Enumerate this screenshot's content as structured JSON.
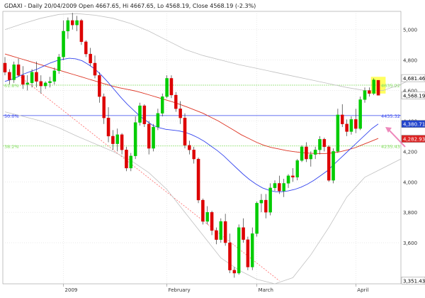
{
  "header": {
    "text": "GDAXI - Daily 20/04/2009 Open 4667.65, Hi 4667.65, Lo 4568.19, Close 4568.19 (-2.3%)"
  },
  "colors": {
    "up": "#00cc00",
    "down": "#dd0000",
    "ma_fast": "#3344ee",
    "ma_slow": "#dd3322",
    "envelope": "#c0c0c0",
    "fib_green": "#88dd66",
    "fib_blue": "#3344ee",
    "trendline": "#ff6666",
    "grid": "#dddddd",
    "highlight": "#ffff44",
    "arrow": "#ee88bb",
    "axis_text": "#333333"
  },
  "chart_data": {
    "type": "candlestick",
    "y_axis_position": "right",
    "ylim": [
      3330,
      5120
    ],
    "grid": true,
    "y_ticks": [
      3600,
      3800,
      4000,
      4200,
      4400,
      4600,
      4800,
      5000
    ],
    "y_tick_labels": [
      "3,600",
      "3,800",
      "4,000",
      "4,200",
      "4,400",
      "4,600",
      "4,800",
      "5,000"
    ],
    "x_labels": [
      {
        "label": "2009",
        "index": 13
      },
      {
        "label": "February",
        "index": 36
      },
      {
        "label": "March",
        "index": 56
      },
      {
        "label": "April",
        "index": 78
      }
    ],
    "ohlc": [
      [
        4780,
        4820,
        4700,
        4720
      ],
      [
        4720,
        4740,
        4640,
        4670
      ],
      [
        4670,
        4790,
        4650,
        4770
      ],
      [
        4770,
        4810,
        4690,
        4700
      ],
      [
        4700,
        4760,
        4610,
        4640
      ],
      [
        4640,
        4700,
        4600,
        4650
      ],
      [
        4650,
        4740,
        4620,
        4720
      ],
      [
        4720,
        4790,
        4620,
        4660
      ],
      [
        4660,
        4700,
        4580,
        4630
      ],
      [
        4630,
        4660,
        4610,
        4650
      ],
      [
        4650,
        4690,
        4620,
        4660
      ],
      [
        4660,
        4750,
        4640,
        4730
      ],
      [
        4730,
        4840,
        4710,
        4820
      ],
      [
        4820,
        5060,
        4800,
        4990
      ],
      [
        4990,
        5080,
        4940,
        5060
      ],
      [
        5060,
        5110,
        5000,
        5030
      ],
      [
        5030,
        5090,
        4990,
        5060
      ],
      [
        5060,
        5070,
        4900,
        4920
      ],
      [
        4920,
        4930,
        4820,
        4840
      ],
      [
        4840,
        4880,
        4760,
        4780
      ],
      [
        4780,
        4830,
        4680,
        4700
      ],
      [
        4700,
        4720,
        4520,
        4560
      ],
      [
        4560,
        4580,
        4380,
        4420
      ],
      [
        4420,
        4490,
        4260,
        4300
      ],
      [
        4300,
        4340,
        4210,
        4250
      ],
      [
        4250,
        4350,
        4200,
        4310
      ],
      [
        4310,
        4320,
        4180,
        4210
      ],
      [
        4210,
        4230,
        4070,
        4090
      ],
      [
        4090,
        4190,
        4070,
        4170
      ],
      [
        4170,
        4430,
        4150,
        4390
      ],
      [
        4390,
        4520,
        4370,
        4500
      ],
      [
        4500,
        4510,
        4360,
        4380
      ],
      [
        4380,
        4400,
        4180,
        4220
      ],
      [
        4220,
        4380,
        4200,
        4360
      ],
      [
        4360,
        4480,
        4340,
        4450
      ],
      [
        4450,
        4580,
        4430,
        4560
      ],
      [
        4560,
        4700,
        4550,
        4680
      ],
      [
        4680,
        4700,
        4550,
        4570
      ],
      [
        4570,
        4590,
        4460,
        4480
      ],
      [
        4480,
        4530,
        4380,
        4420
      ],
      [
        4420,
        4450,
        4220,
        4240
      ],
      [
        4240,
        4270,
        4180,
        4210
      ],
      [
        4210,
        4230,
        4120,
        4150
      ],
      [
        4150,
        4160,
        3860,
        3880
      ],
      [
        3880,
        3890,
        3720,
        3740
      ],
      [
        3740,
        3840,
        3720,
        3800
      ],
      [
        3800,
        3810,
        3650,
        3680
      ],
      [
        3680,
        3700,
        3590,
        3620
      ],
      [
        3620,
        3760,
        3600,
        3740
      ],
      [
        3740,
        3790,
        3580,
        3600
      ],
      [
        3600,
        3660,
        3400,
        3420
      ],
      [
        3420,
        3440,
        3370,
        3400
      ],
      [
        3400,
        3720,
        3390,
        3700
      ],
      [
        3700,
        3760,
        3600,
        3620
      ],
      [
        3620,
        3640,
        3420,
        3440
      ],
      [
        3440,
        3700,
        3420,
        3660
      ],
      [
        3660,
        3870,
        3640,
        3860
      ],
      [
        3860,
        3920,
        3800,
        3880
      ],
      [
        3880,
        3920,
        3760,
        3800
      ],
      [
        3800,
        3990,
        3780,
        3960
      ],
      [
        3960,
        4010,
        3940,
        3990
      ],
      [
        3990,
        4040,
        3920,
        3940
      ],
      [
        3940,
        4020,
        3900,
        3990
      ],
      [
        3990,
        4050,
        3960,
        4040
      ],
      [
        4040,
        4090,
        4000,
        4030
      ],
      [
        4030,
        4150,
        4010,
        4140
      ],
      [
        4140,
        4240,
        4130,
        4230
      ],
      [
        4230,
        4260,
        4130,
        4150
      ],
      [
        4150,
        4200,
        4100,
        4180
      ],
      [
        4180,
        4230,
        4150,
        4210
      ],
      [
        4210,
        4300,
        4180,
        4280
      ],
      [
        4280,
        4290,
        4200,
        4230
      ],
      [
        4230,
        4240,
        4000,
        4010
      ],
      [
        4010,
        4220,
        3990,
        4200
      ],
      [
        4200,
        4480,
        4190,
        4440
      ],
      [
        4440,
        4510,
        4360,
        4380
      ],
      [
        4380,
        4410,
        4300,
        4330
      ],
      [
        4330,
        4430,
        4310,
        4410
      ],
      [
        4410,
        4480,
        4320,
        4350
      ],
      [
        4350,
        4560,
        4340,
        4540
      ],
      [
        4540,
        4620,
        4520,
        4600
      ],
      [
        4600,
        4620,
        4560,
        4580
      ],
      [
        4580,
        4680,
        4570,
        4670
      ],
      [
        4667.65,
        4667.65,
        4568.19,
        4568.19
      ]
    ],
    "ma_fast": [
      4660,
      4672,
      4690,
      4710,
      4725,
      4740,
      4760,
      4780,
      4795,
      4805,
      4812,
      4808,
      4795,
      4770,
      4740,
      4700,
      4655,
      4605,
      4555,
      4510,
      4470,
      4430,
      4400,
      4370,
      4355,
      4345,
      4340,
      4335,
      4325,
      4310,
      4290,
      4265,
      4235,
      4205,
      4170,
      4130,
      4090,
      4050,
      4015,
      3985,
      3960,
      3945,
      3935,
      3935,
      3940,
      3950,
      3965,
      3985,
      4010,
      4040,
      4070,
      4110,
      4150,
      4190,
      4230,
      4270,
      4310,
      4350,
      4380
    ],
    "ma_fast_start": 0,
    "ma_slow": [
      4840,
      4825,
      4810,
      4795,
      4780,
      4765,
      4750,
      4735,
      4720,
      4705,
      4690,
      4675,
      4660,
      4645,
      4630,
      4618,
      4608,
      4598,
      4585,
      4570,
      4555,
      4540,
      4525,
      4508,
      4490,
      4470,
      4450,
      4425,
      4400,
      4370,
      4340,
      4310,
      4285,
      4260,
      4240,
      4225,
      4215,
      4205,
      4198,
      4192,
      4188,
      4186,
      4186,
      4190,
      4198,
      4210,
      4225,
      4245,
      4265,
      4285
    ],
    "ma_slow_start": 0,
    "envelope_upper": [
      5000,
      5040,
      5075,
      5100,
      5105,
      5095,
      5075,
      5040,
      4990,
      4930,
      4870,
      4830,
      4800,
      4770,
      4745,
      4720,
      4695,
      4670,
      4645,
      4620,
      4600,
      4600,
      4640,
      4700
    ],
    "envelope_upper_step": 4,
    "envelope_lower": [
      4460,
      4430,
      4400,
      4355,
      4300,
      4250,
      4200,
      4140,
      4060,
      3950,
      3800,
      3650,
      3500,
      3420,
      3360,
      3330,
      3370,
      3520,
      3700,
      3900,
      4030,
      4090,
      4150
    ],
    "envelope_lower_step": 4,
    "trendline": {
      "from_index": 3,
      "from_value": 4700,
      "to_index": 61,
      "to_value": 3350
    },
    "fib_lines": [
      {
        "value": 4635.22,
        "label": "61.8%",
        "color": "green"
      },
      {
        "value": 4435.32,
        "label": "50.0%",
        "color": "blue"
      },
      {
        "value": 4235.43,
        "label": "38.2%",
        "color": "green"
      }
    ],
    "fib_right_labels": [
      {
        "value": 4635.22,
        "text": "4635.22"
      },
      {
        "value": 4435.32,
        "text": "4435.32"
      },
      {
        "value": 4235.43,
        "text": "4235.43"
      }
    ],
    "price_tags": [
      {
        "value": 4681.46,
        "text": "4,681.46",
        "fill": "#ffffff",
        "text_color": "#000000"
      },
      {
        "value": 4568.19,
        "text": "4,568.19",
        "fill": "#ffffff",
        "text_color": "#000000"
      },
      {
        "value": 4380.71,
        "text": "4,380.71",
        "fill": "#2244cc",
        "text_color": "#ffffff"
      },
      {
        "value": 4282.93,
        "text": "4,282.93",
        "fill": "#dd2222",
        "text_color": "#ffffff"
      },
      {
        "value": 3351.43,
        "text": "3,351.43",
        "fill": "#ffffff",
        "text_color": "#000000"
      }
    ],
    "highlight": {
      "from_index": 82,
      "to_index": 84,
      "low": 4580,
      "high": 4690
    },
    "arrow": {
      "tail_value": 4230,
      "head_value": 4360
    }
  }
}
